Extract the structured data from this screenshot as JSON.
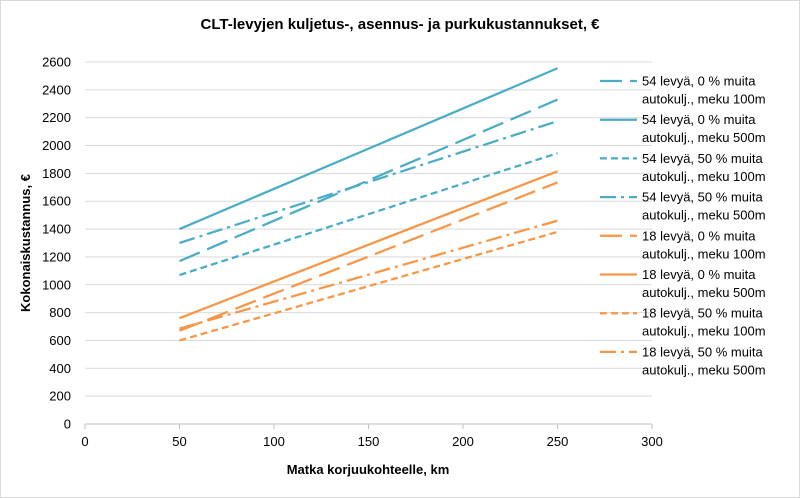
{
  "chart_data": {
    "type": "line",
    "title": "CLT-levyjen kuljetus-, asennus- ja purkukustannukset, €",
    "xlabel": "Matka korjuukohteelle, km",
    "ylabel": "Kokonaiskustannus, €",
    "xlim": [
      0,
      300
    ],
    "ylim": [
      0,
      2600
    ],
    "xticks": [
      0,
      50,
      100,
      150,
      200,
      250,
      300
    ],
    "yticks": [
      0,
      200,
      400,
      600,
      800,
      1000,
      1200,
      1400,
      1600,
      1800,
      2000,
      2200,
      2400,
      2600
    ],
    "grid": "horizontal",
    "legend_position": "right",
    "series": [
      {
        "name": "54 levyä, 0 % muita autokulj., meku 100m",
        "legend_lines": [
          "54 levyä, 0 % muita",
          "autokulj., meku 100m"
        ],
        "color": "#4bacc6",
        "dash": "longdash",
        "x": [
          50,
          250
        ],
        "y": [
          1170,
          2330
        ]
      },
      {
        "name": "54 levyä, 0 % muita autokulj., meku 500m",
        "legend_lines": [
          "54 levyä, 0 % muita",
          "autokulj., meku 500m"
        ],
        "color": "#4bacc6",
        "dash": "solid",
        "x": [
          50,
          250
        ],
        "y": [
          1400,
          2555
        ]
      },
      {
        "name": "54 levyä, 50 % muita autokulj., meku 100m",
        "legend_lines": [
          "54 levyä, 50 % muita",
          "autokulj., meku 100m"
        ],
        "color": "#4bacc6",
        "dash": "shortdash",
        "x": [
          50,
          250
        ],
        "y": [
          1070,
          1945
        ]
      },
      {
        "name": "54 levyä, 50 % muita autokulj., meku 500m",
        "legend_lines": [
          "54 levyä, 50 % muita",
          "autokulj., meku 500m"
        ],
        "color": "#4bacc6",
        "dash": "dashdot",
        "x": [
          50,
          250
        ],
        "y": [
          1300,
          2175
        ]
      },
      {
        "name": "18 levyä, 0 % muita autokulj., meku 100m",
        "legend_lines": [
          "18 levyä, 0 % muita",
          "autokulj., meku 100m"
        ],
        "color": "#f79646",
        "dash": "longdash",
        "x": [
          50,
          250
        ],
        "y": [
          670,
          1735
        ]
      },
      {
        "name": "18 levyä, 0 % muita autokulj., meku 500m",
        "legend_lines": [
          "18 levyä, 0 % muita",
          "autokulj., meku 500m"
        ],
        "color": "#f79646",
        "dash": "solid",
        "x": [
          50,
          250
        ],
        "y": [
          760,
          1815
        ]
      },
      {
        "name": "18 levyä, 50 % muita autokulj., meku 100m",
        "legend_lines": [
          "18 levyä, 50 % muita",
          "autokulj., meku 100m"
        ],
        "color": "#f79646",
        "dash": "shortdash",
        "x": [
          50,
          250
        ],
        "y": [
          600,
          1380
        ]
      },
      {
        "name": "18 levyä, 50 % muita autokulj., meku 500m",
        "legend_lines": [
          "18 levyä, 50 % muita",
          "autokulj., meku 500m"
        ],
        "color": "#f79646",
        "dash": "dashdot",
        "x": [
          50,
          250
        ],
        "y": [
          685,
          1460
        ]
      }
    ]
  }
}
